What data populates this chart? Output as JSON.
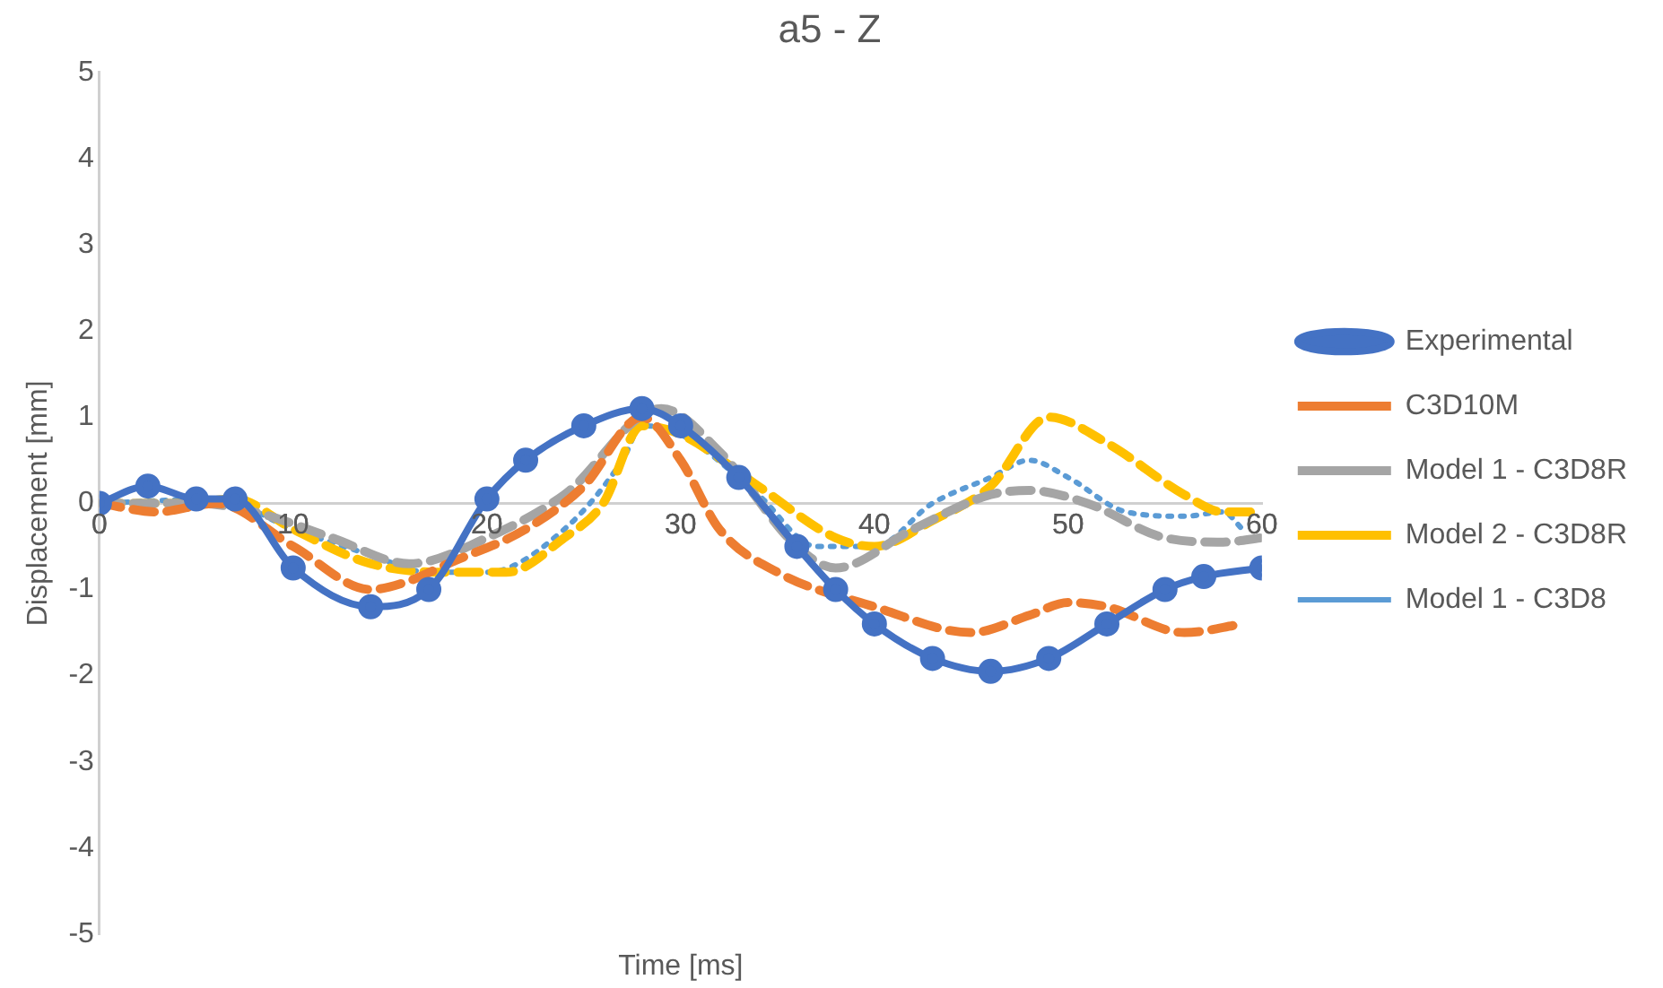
{
  "chart_data": {
    "type": "line",
    "title": "a5 - Z",
    "xlabel": "Time [ms]",
    "ylabel": "Displacement [mm]",
    "xlim": [
      0,
      60
    ],
    "xticks": [
      0,
      10,
      20,
      30,
      40,
      50,
      60
    ],
    "ylim": [
      -5,
      5
    ],
    "yticks": [
      -5,
      -4,
      -3,
      -2,
      -1,
      0,
      1,
      2,
      3,
      4,
      5
    ],
    "grid": false,
    "legend": "right",
    "series": [
      {
        "name": "Experimental",
        "color": "#4472c4",
        "marker": "circle",
        "line_style": "solid",
        "x": [
          0,
          2.5,
          5,
          7,
          10,
          14,
          17,
          20,
          22,
          25,
          28,
          30,
          33,
          36,
          38,
          40,
          43,
          46,
          49,
          52,
          55,
          57,
          60
        ],
        "values": [
          0,
          0.2,
          0.05,
          0.05,
          -0.75,
          -1.2,
          -1.0,
          0.05,
          0.5,
          0.9,
          1.1,
          0.9,
          0.3,
          -0.5,
          -1.0,
          -1.4,
          -1.8,
          -1.95,
          -1.8,
          -1.4,
          -1.0,
          -0.85,
          -0.75
        ]
      },
      {
        "name": "C3D10M",
        "color": "#ed7d31",
        "marker": "none",
        "line_style": "dashed",
        "x": [
          0,
          3,
          6,
          10,
          14,
          16,
          18,
          22,
          25,
          28,
          30,
          32,
          35,
          40,
          45,
          48,
          50,
          52,
          56,
          59
        ],
        "values": [
          0,
          -0.1,
          0,
          -0.5,
          -1.0,
          -0.9,
          -0.7,
          -0.3,
          0.2,
          1.0,
          0.5,
          -0.3,
          -0.8,
          -1.2,
          -1.5,
          -1.3,
          -1.15,
          -1.2,
          -1.5,
          -1.4
        ]
      },
      {
        "name": "Model 1 - C3D8R",
        "color": "#a5a5a5",
        "marker": "none",
        "line_style": "dashed",
        "x": [
          0,
          5,
          8,
          12,
          16,
          20,
          24,
          29,
          32,
          36,
          38,
          42,
          46,
          48,
          51,
          55,
          58,
          60
        ],
        "values": [
          0,
          0,
          -0.1,
          -0.4,
          -0.7,
          -0.4,
          0.1,
          1.1,
          0.6,
          -0.5,
          -0.75,
          -0.3,
          0.1,
          0.15,
          0,
          -0.4,
          -0.45,
          -0.4
        ]
      },
      {
        "name": "Model 2 - C3D8R",
        "color": "#ffc000",
        "marker": "none",
        "line_style": "dashed",
        "x": [
          0,
          4,
          7,
          10,
          14,
          18,
          21,
          24,
          26,
          28,
          30,
          34,
          38,
          40,
          43,
          46,
          49,
          52,
          56,
          58,
          60
        ],
        "values": [
          0,
          0,
          0.05,
          -0.3,
          -0.7,
          -0.8,
          -0.8,
          -0.4,
          0,
          0.9,
          0.8,
          0.2,
          -0.4,
          -0.5,
          -0.2,
          0.2,
          1.0,
          0.7,
          0.1,
          -0.1,
          -0.1
        ]
      },
      {
        "name": "Model 1 - C3D8",
        "color": "#5b9bd5",
        "marker": "none",
        "line_style": "dotted",
        "x": [
          0,
          6,
          10,
          14,
          17,
          20,
          24,
          27,
          28,
          30,
          34,
          37,
          40,
          43,
          46,
          48,
          50,
          53,
          56,
          58,
          59
        ],
        "values": [
          0,
          0.05,
          -0.3,
          -0.6,
          -0.8,
          -0.8,
          -0.3,
          0.5,
          0.9,
          0.8,
          0.1,
          -0.5,
          -0.5,
          0,
          0.3,
          0.5,
          0.3,
          -0.1,
          -0.15,
          -0.1,
          -0.3
        ]
      }
    ]
  }
}
